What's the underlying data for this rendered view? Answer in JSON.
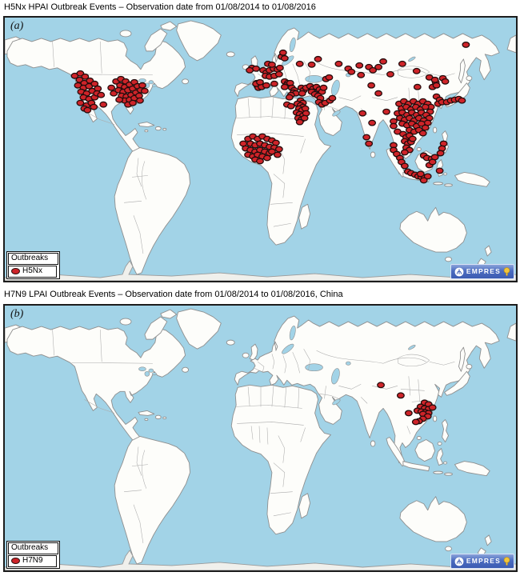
{
  "figure": {
    "colors": {
      "ocean": "#a2d3e7",
      "land": "#fdfdfa",
      "land_border": "#8f8f8f",
      "country_border": "#ababab",
      "dot_fill": "#cf2429",
      "dot_stroke": "#230c0c",
      "frame": "#1c1c1c",
      "empres_blue": "#4b6cc0"
    },
    "panels": [
      {
        "id": "a",
        "title": "H5Nx HPAI Outbreak Events – Observation date from 01/08/2014 to 01/08/2016",
        "label": "(a)",
        "legend": {
          "header": "Outbreaks",
          "item": "H5Nx"
        },
        "watermark": "EMPRES",
        "outbreak_points": [
          [
            88,
            73
          ],
          [
            95,
            70
          ],
          [
            101,
            74
          ],
          [
            94,
            78
          ],
          [
            100,
            82
          ],
          [
            107,
            79
          ],
          [
            92,
            85
          ],
          [
            99,
            88
          ],
          [
            106,
            86
          ],
          [
            113,
            83
          ],
          [
            96,
            93
          ],
          [
            103,
            95
          ],
          [
            110,
            92
          ],
          [
            117,
            89
          ],
          [
            99,
            100
          ],
          [
            106,
            102
          ],
          [
            113,
            100
          ],
          [
            95,
            107
          ],
          [
            103,
            110
          ],
          [
            109,
            107
          ],
          [
            100,
            114
          ],
          [
            112,
            112
          ],
          [
            104,
            116
          ],
          [
            116,
            95
          ],
          [
            121,
            97
          ],
          [
            124,
            109
          ],
          [
            134,
            88
          ],
          [
            137,
            95
          ],
          [
            140,
            80
          ],
          [
            146,
            77
          ],
          [
            152,
            80
          ],
          [
            145,
            85
          ],
          [
            151,
            87
          ],
          [
            157,
            84
          ],
          [
            163,
            81
          ],
          [
            143,
            91
          ],
          [
            149,
            93
          ],
          [
            155,
            91
          ],
          [
            161,
            89
          ],
          [
            167,
            86
          ],
          [
            147,
            98
          ],
          [
            153,
            99
          ],
          [
            159,
            97
          ],
          [
            165,
            94
          ],
          [
            171,
            91
          ],
          [
            151,
            104
          ],
          [
            157,
            103
          ],
          [
            163,
            101
          ],
          [
            169,
            98
          ],
          [
            155,
            109
          ],
          [
            161,
            107
          ],
          [
            144,
            103
          ],
          [
            173,
            85
          ],
          [
            176,
            92
          ],
          [
            170,
            104
          ],
          [
            311,
            63
          ],
          [
            316,
            64
          ],
          [
            308,
            66
          ],
          [
            317,
            82
          ],
          [
            320,
            84
          ],
          [
            318,
            86
          ],
          [
            322,
            85
          ],
          [
            319,
            88
          ],
          [
            323,
            87
          ],
          [
            316,
            83
          ],
          [
            321,
            81
          ],
          [
            325,
            66
          ],
          [
            329,
            69
          ],
          [
            333,
            66
          ],
          [
            338,
            64
          ],
          [
            343,
            65
          ],
          [
            346,
            63
          ],
          [
            328,
            73
          ],
          [
            333,
            74
          ],
          [
            339,
            73
          ],
          [
            345,
            71
          ],
          [
            331,
            58
          ],
          [
            336,
            59
          ],
          [
            348,
            49
          ],
          [
            352,
            51
          ],
          [
            350,
            44
          ],
          [
            329,
            85
          ],
          [
            339,
            83
          ],
          [
            352,
            80
          ],
          [
            356,
            82
          ],
          [
            354,
            85
          ],
          [
            359,
            82
          ],
          [
            352,
            87
          ],
          [
            371,
            58
          ],
          [
            361,
            88
          ],
          [
            364,
            91
          ],
          [
            363,
            94
          ],
          [
            366,
            95
          ],
          [
            360,
            97
          ],
          [
            358,
            100
          ],
          [
            373,
            88
          ],
          [
            376,
            91
          ],
          [
            379,
            88
          ],
          [
            374,
            95
          ],
          [
            384,
            86
          ],
          [
            388,
            89
          ],
          [
            392,
            87
          ],
          [
            396,
            90
          ],
          [
            399,
            93
          ],
          [
            386,
            93
          ],
          [
            390,
            96
          ],
          [
            394,
            98
          ],
          [
            401,
            88
          ],
          [
            397,
            101
          ],
          [
            404,
            77
          ],
          [
            408,
            75
          ],
          [
            386,
            59
          ],
          [
            394,
            52
          ],
          [
            395,
            106
          ],
          [
            399,
            109
          ],
          [
            403,
            107
          ],
          [
            409,
            104
          ],
          [
            412,
            101
          ],
          [
            355,
            109
          ],
          [
            372,
            104
          ],
          [
            375,
            107
          ],
          [
            368,
            108
          ],
          [
            372,
            110
          ],
          [
            375,
            112
          ],
          [
            370,
            114
          ],
          [
            374,
            116
          ],
          [
            378,
            114
          ],
          [
            367,
            119
          ],
          [
            371,
            121
          ],
          [
            375,
            123
          ],
          [
            379,
            120
          ],
          [
            369,
            126
          ],
          [
            373,
            128
          ],
          [
            377,
            126
          ],
          [
            371,
            131
          ],
          [
            360,
            111
          ],
          [
            300,
            158
          ],
          [
            306,
            152
          ],
          [
            312,
            149
          ],
          [
            318,
            152
          ],
          [
            324,
            149
          ],
          [
            330,
            152
          ],
          [
            336,
            154
          ],
          [
            341,
            157
          ],
          [
            309,
            158
          ],
          [
            315,
            160
          ],
          [
            321,
            158
          ],
          [
            327,
            160
          ],
          [
            333,
            162
          ],
          [
            339,
            163
          ],
          [
            303,
            164
          ],
          [
            309,
            166
          ],
          [
            315,
            168
          ],
          [
            321,
            166
          ],
          [
            327,
            168
          ],
          [
            333,
            170
          ],
          [
            306,
            172
          ],
          [
            312,
            174
          ],
          [
            318,
            172
          ],
          [
            324,
            174
          ],
          [
            330,
            176
          ],
          [
            315,
            178
          ],
          [
            321,
            180
          ],
          [
            336,
            168
          ],
          [
            345,
            165
          ],
          [
            343,
            172
          ],
          [
            450,
            120
          ],
          [
            455,
            150
          ],
          [
            462,
            132
          ],
          [
            458,
            158
          ],
          [
            470,
            95
          ],
          [
            480,
            118
          ],
          [
            420,
            58
          ],
          [
            432,
            64
          ],
          [
            446,
            60
          ],
          [
            458,
            62
          ],
          [
            463,
            66
          ],
          [
            436,
            68
          ],
          [
            448,
            72
          ],
          [
            461,
            85
          ],
          [
            470,
            62
          ],
          [
            476,
            55
          ],
          [
            500,
            58
          ],
          [
            485,
            71
          ],
          [
            518,
            67
          ],
          [
            519,
            87
          ],
          [
            534,
            75
          ],
          [
            542,
            81
          ],
          [
            538,
            87
          ],
          [
            496,
            108
          ],
          [
            502,
            105
          ],
          [
            508,
            108
          ],
          [
            514,
            105
          ],
          [
            520,
            108
          ],
          [
            526,
            105
          ],
          [
            532,
            108
          ],
          [
            536,
            112
          ],
          [
            499,
            114
          ],
          [
            505,
            112
          ],
          [
            511,
            115
          ],
          [
            517,
            112
          ],
          [
            523,
            115
          ],
          [
            529,
            112
          ],
          [
            535,
            118
          ],
          [
            494,
            120
          ],
          [
            500,
            119
          ],
          [
            506,
            122
          ],
          [
            512,
            119
          ],
          [
            518,
            122
          ],
          [
            524,
            119
          ],
          [
            530,
            122
          ],
          [
            534,
            126
          ],
          [
            497,
            126
          ],
          [
            503,
            128
          ],
          [
            509,
            126
          ],
          [
            515,
            129
          ],
          [
            521,
            126
          ],
          [
            527,
            129
          ],
          [
            532,
            132
          ],
          [
            500,
            133
          ],
          [
            506,
            135
          ],
          [
            512,
            133
          ],
          [
            518,
            136
          ],
          [
            524,
            133
          ],
          [
            529,
            138
          ],
          [
            509,
            141
          ],
          [
            515,
            143
          ],
          [
            521,
            141
          ],
          [
            526,
            145
          ],
          [
            489,
            130
          ],
          [
            494,
            143
          ],
          [
            543,
            99
          ],
          [
            547,
            103
          ],
          [
            545,
            108
          ],
          [
            550,
            106
          ],
          [
            556,
            106
          ],
          [
            561,
            104
          ],
          [
            566,
            103
          ],
          [
            571,
            102
          ],
          [
            575,
            104
          ],
          [
            541,
            78
          ],
          [
            551,
            76
          ],
          [
            554,
            80
          ],
          [
            543,
            85
          ],
          [
            580,
            34
          ],
          [
            489,
            136
          ],
          [
            501,
            146
          ],
          [
            505,
            150
          ],
          [
            509,
            148
          ],
          [
            503,
            155
          ],
          [
            507,
            158
          ],
          [
            511,
            156
          ],
          [
            505,
            163
          ],
          [
            509,
            166
          ],
          [
            503,
            169
          ],
          [
            513,
            152
          ],
          [
            552,
            158
          ],
          [
            550,
            164
          ],
          [
            548,
            170
          ],
          [
            489,
            160
          ],
          [
            489,
            166
          ],
          [
            493,
            171
          ],
          [
            497,
            176
          ],
          [
            499,
            181
          ],
          [
            503,
            186
          ],
          [
            507,
            193
          ],
          [
            511,
            195
          ],
          [
            516,
            197
          ],
          [
            520,
            199
          ],
          [
            524,
            200
          ],
          [
            528,
            200
          ],
          [
            532,
            199
          ],
          [
            527,
            204
          ],
          [
            523,
            196
          ],
          [
            527,
            173
          ],
          [
            531,
            176
          ],
          [
            537,
            177
          ],
          [
            541,
            175
          ],
          [
            534,
            185
          ],
          [
            538,
            181
          ],
          [
            547,
            192
          ]
        ]
      },
      {
        "id": "b",
        "title": "H7N9 LPAI Outbreak Events – Observation date from 01/08/2014 to 01/08/2016, China",
        "label": "(b)",
        "legend": {
          "header": "Outbreaks",
          "item": "H7N9"
        },
        "watermark": "EMPRES",
        "outbreak_points": [
          [
            473,
            99
          ],
          [
            498,
            112
          ],
          [
            508,
            134
          ],
          [
            528,
            121
          ],
          [
            533,
            123
          ],
          [
            523,
            126
          ],
          [
            528,
            128
          ],
          [
            533,
            129
          ],
          [
            538,
            127
          ],
          [
            519,
            131
          ],
          [
            524,
            132
          ],
          [
            529,
            133
          ],
          [
            533,
            134
          ],
          [
            526,
            135
          ],
          [
            532,
            138
          ],
          [
            526,
            141
          ],
          [
            521,
            144
          ],
          [
            517,
            145
          ]
        ]
      }
    ]
  }
}
